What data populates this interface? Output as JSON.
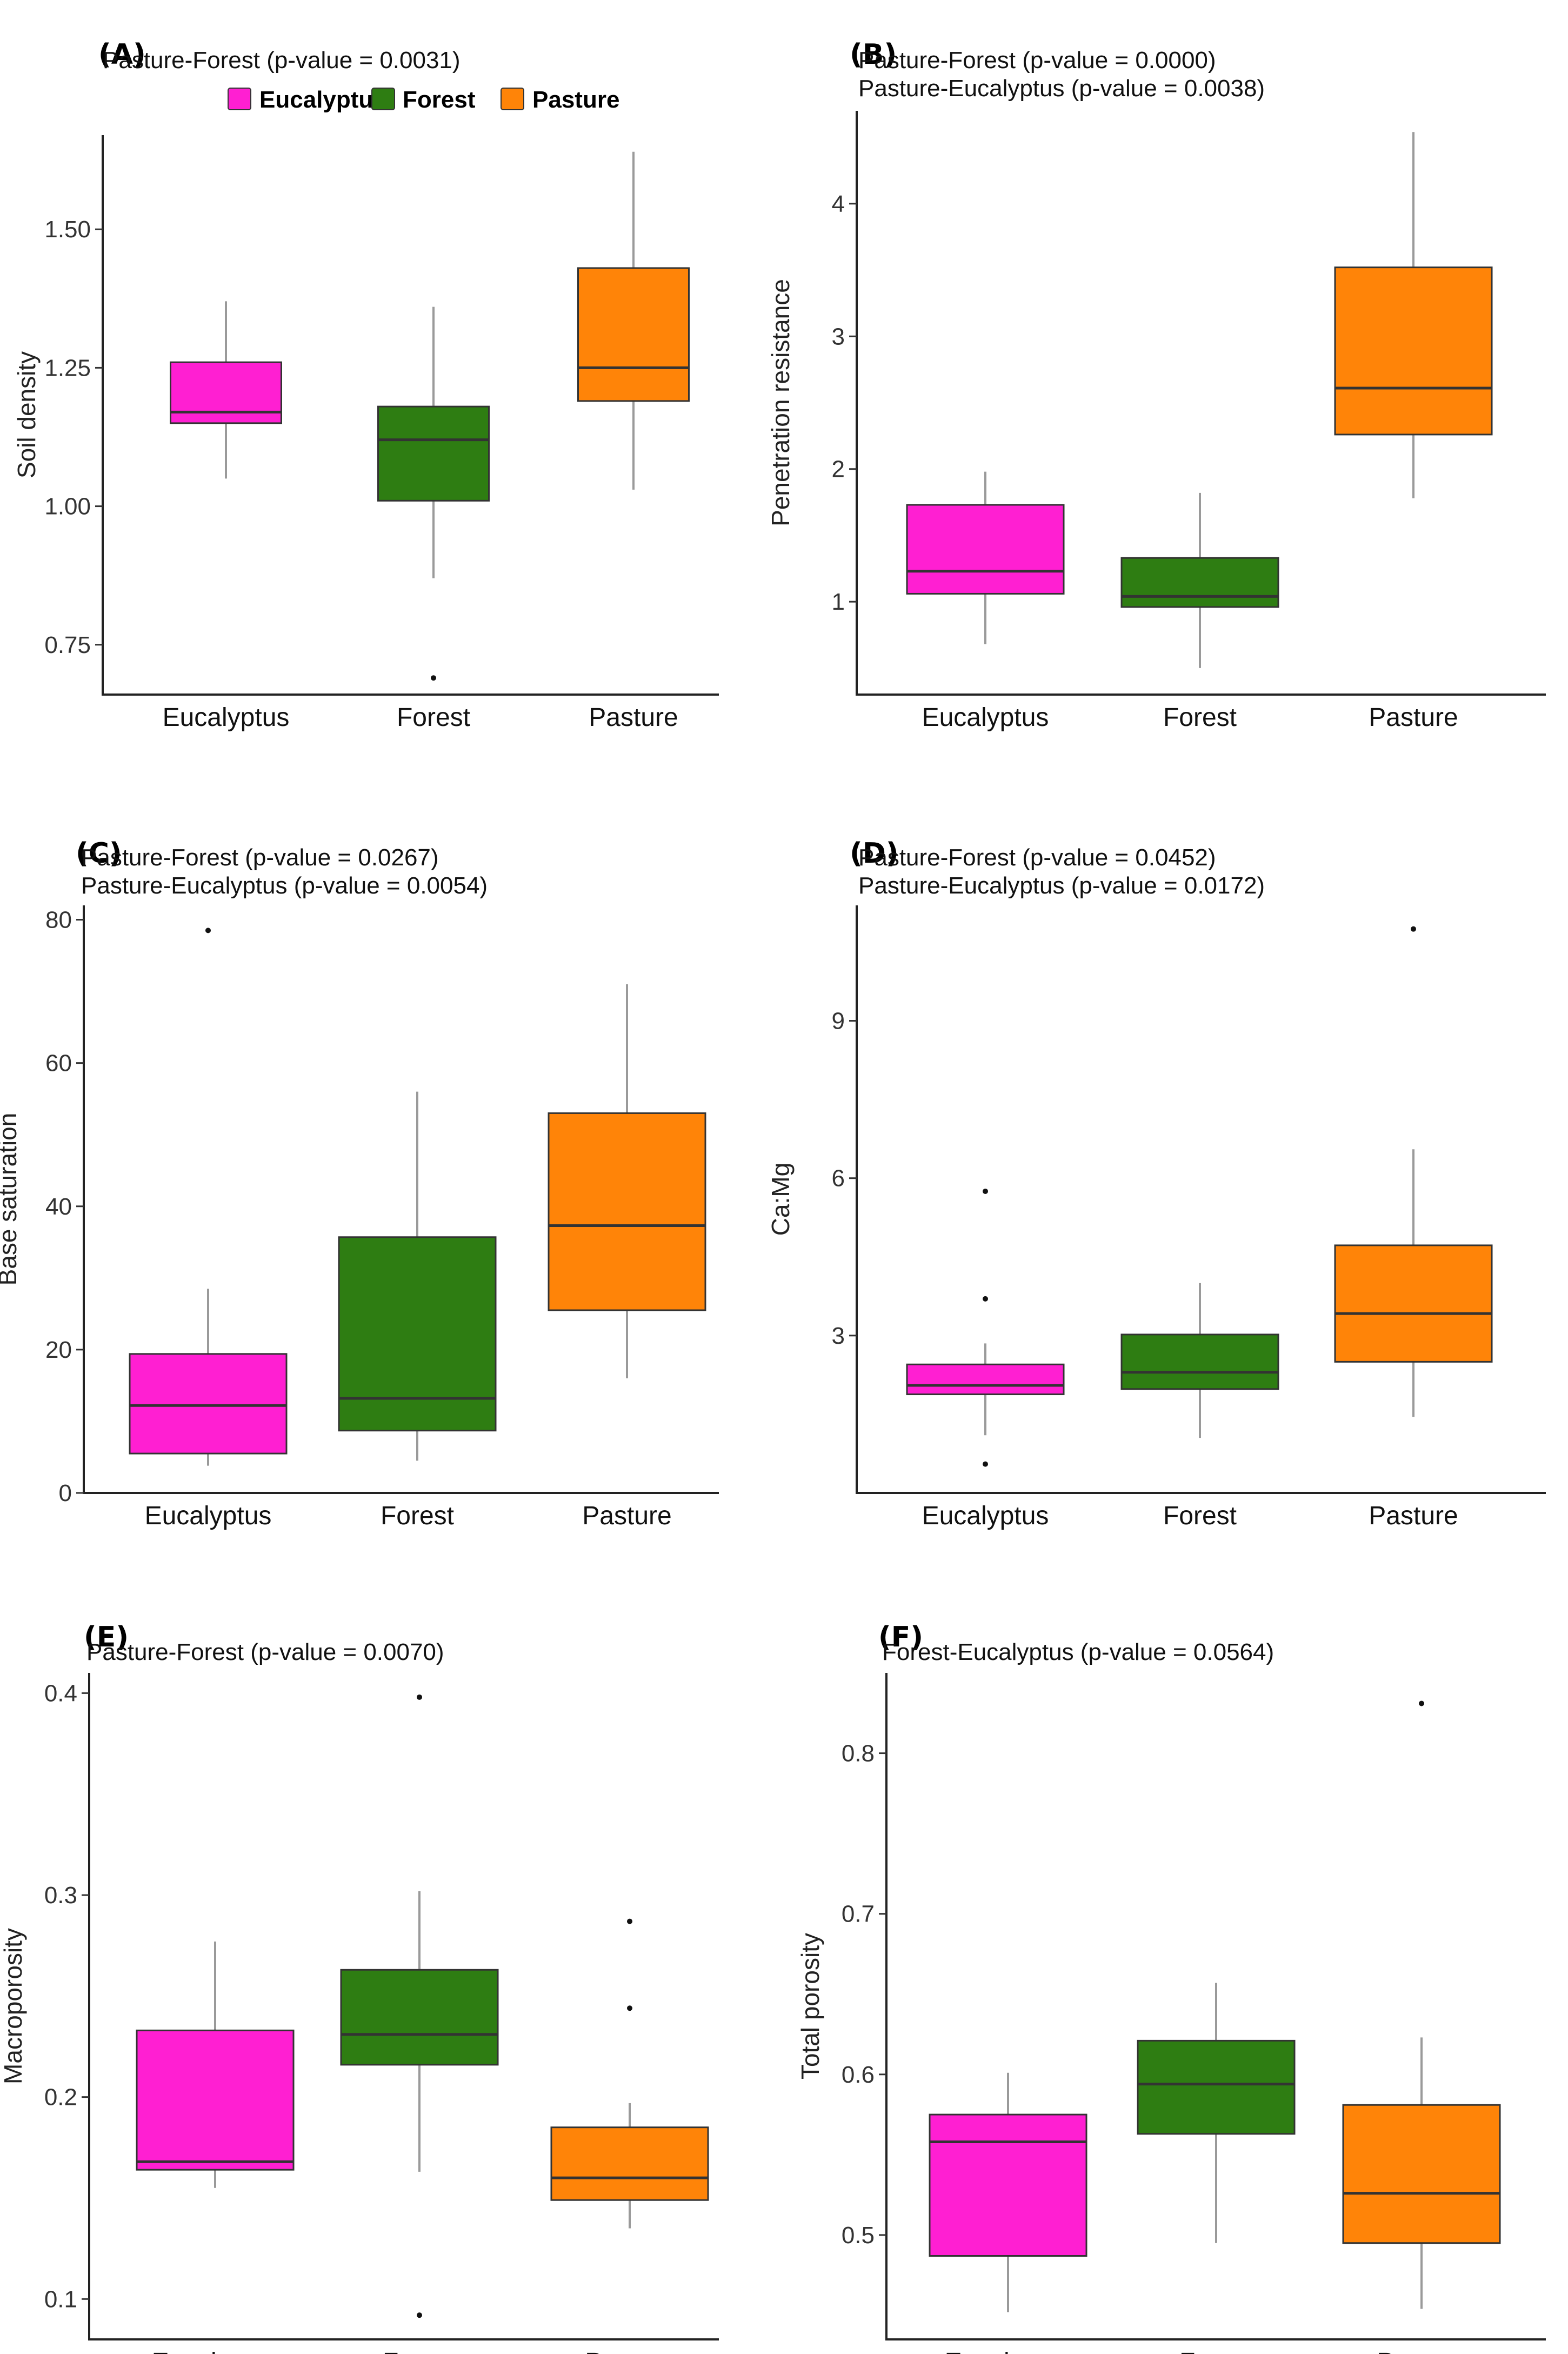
{
  "legend": {
    "items": [
      {
        "name": "Eucalyptus",
        "color": "#FF1FD2"
      },
      {
        "name": "Forest",
        "color": "#2E7D12"
      },
      {
        "name": "Pasture",
        "color": "#FF8408"
      }
    ]
  },
  "chart_data": [
    {
      "type": "boxplot",
      "panel": "(A)",
      "annotations": [
        "Pasture-Forest (p-value = 0.0031)"
      ],
      "ylabel": "Soil density",
      "ylim": [
        0.66,
        1.67
      ],
      "yticks": [
        0.75,
        1.0,
        1.25,
        1.5
      ],
      "ytick_labels": [
        "0.75",
        "1.00",
        "1.25",
        "1.50"
      ],
      "categories": [
        "Eucalyptus",
        "Forest",
        "Pasture"
      ],
      "boxes": [
        {
          "category": "Eucalyptus",
          "whisker_low": 1.05,
          "q1": 1.15,
          "median": 1.17,
          "q3": 1.26,
          "whisker_high": 1.37,
          "outliers": []
        },
        {
          "category": "Forest",
          "whisker_low": 0.87,
          "q1": 1.01,
          "median": 1.12,
          "q3": 1.18,
          "whisker_high": 1.36,
          "outliers": [
            0.69
          ]
        },
        {
          "category": "Pasture",
          "whisker_low": 1.03,
          "q1": 1.19,
          "median": 1.25,
          "q3": 1.43,
          "whisker_high": 1.64,
          "outliers": []
        }
      ]
    },
    {
      "type": "boxplot",
      "panel": "(B)",
      "annotations": [
        "Pasture-Forest (p-value = 0.0000)",
        "Pasture-Eucalyptus (p-value = 0.0038)"
      ],
      "ylabel": "Penetration resistance",
      "ylim": [
        0.3,
        4.7
      ],
      "yticks": [
        1,
        2,
        3,
        4
      ],
      "ytick_labels": [
        "1",
        "2",
        "3",
        "4"
      ],
      "categories": [
        "Eucalyptus",
        "Forest",
        "Pasture"
      ],
      "boxes": [
        {
          "category": "Eucalyptus",
          "whisker_low": 0.68,
          "q1": 1.06,
          "median": 1.23,
          "q3": 1.73,
          "whisker_high": 1.98,
          "outliers": []
        },
        {
          "category": "Forest",
          "whisker_low": 0.5,
          "q1": 0.96,
          "median": 1.04,
          "q3": 1.33,
          "whisker_high": 1.82,
          "outliers": []
        },
        {
          "category": "Pasture",
          "whisker_low": 1.78,
          "q1": 2.26,
          "median": 2.61,
          "q3": 3.52,
          "whisker_high": 4.54,
          "outliers": []
        }
      ]
    },
    {
      "type": "boxplot",
      "panel": "(C)",
      "annotations": [
        "Pasture-Forest (p-value = 0.0267)",
        "Pasture-Eucalyptus (p-value = 0.0054)"
      ],
      "ylabel": "Base saturation",
      "ylim": [
        0,
        82
      ],
      "yticks": [
        0,
        20,
        40,
        60,
        80
      ],
      "ytick_labels": [
        "0",
        "20",
        "40",
        "60",
        "80"
      ],
      "categories": [
        "Eucalyptus",
        "Forest",
        "Pasture"
      ],
      "boxes": [
        {
          "category": "Eucalyptus",
          "whisker_low": 3.8,
          "q1": 5.5,
          "median": 12.2,
          "q3": 19.4,
          "whisker_high": 28.5,
          "outliers": [
            78.5
          ]
        },
        {
          "category": "Forest",
          "whisker_low": 4.5,
          "q1": 8.7,
          "median": 13.2,
          "q3": 35.7,
          "whisker_high": 56.0,
          "outliers": []
        },
        {
          "category": "Pasture",
          "whisker_low": 16.0,
          "q1": 25.5,
          "median": 37.3,
          "q3": 53.0,
          "whisker_high": 71.0,
          "outliers": []
        }
      ]
    },
    {
      "type": "boxplot",
      "panel": "(D)",
      "annotations": [
        "Pasture-Forest (p-value = 0.0452)",
        "Pasture-Eucalyptus (p-value = 0.0172)"
      ],
      "ylabel": "Ca:Mg",
      "ylim": [
        0.0,
        11.2
      ],
      "yticks": [
        3,
        6,
        9
      ],
      "ytick_labels": [
        "3",
        "6",
        "9"
      ],
      "categories": [
        "Eucalyptus",
        "Forest",
        "Pasture"
      ],
      "boxes": [
        {
          "category": "Eucalyptus",
          "whisker_low": 1.1,
          "q1": 1.88,
          "median": 2.05,
          "q3": 2.45,
          "whisker_high": 2.85,
          "outliers": [
            5.75,
            3.7,
            0.55
          ]
        },
        {
          "category": "Forest",
          "whisker_low": 1.05,
          "q1": 1.98,
          "median": 2.3,
          "q3": 3.02,
          "whisker_high": 4.0,
          "outliers": []
        },
        {
          "category": "Pasture",
          "whisker_low": 1.45,
          "q1": 2.5,
          "median": 3.42,
          "q3": 4.72,
          "whisker_high": 6.55,
          "outliers": [
            10.75
          ]
        }
      ]
    },
    {
      "type": "boxplot",
      "panel": "(E)",
      "annotations": [
        "Pasture-Forest (p-value = 0.0070)"
      ],
      "ylabel": "Macroporosity",
      "ylim": [
        0.08,
        0.41
      ],
      "yticks": [
        0.1,
        0.2,
        0.3,
        0.4
      ],
      "ytick_labels": [
        "0.1",
        "0.2",
        "0.3",
        "0.4"
      ],
      "categories": [
        "Eucalyptus",
        "Forest",
        "Pasture"
      ],
      "boxes": [
        {
          "category": "Eucalyptus",
          "whisker_low": 0.155,
          "q1": 0.164,
          "median": 0.168,
          "q3": 0.233,
          "whisker_high": 0.277,
          "outliers": []
        },
        {
          "category": "Forest",
          "whisker_low": 0.163,
          "q1": 0.216,
          "median": 0.231,
          "q3": 0.263,
          "whisker_high": 0.302,
          "outliers": [
            0.398,
            0.092
          ]
        },
        {
          "category": "Pasture",
          "whisker_low": 0.135,
          "q1": 0.149,
          "median": 0.16,
          "q3": 0.185,
          "whisker_high": 0.197,
          "outliers": [
            0.287,
            0.244
          ]
        }
      ]
    },
    {
      "type": "boxplot",
      "panel": "(F)",
      "annotations": [
        "Forest-Eucalyptus (p-value = 0.0564)"
      ],
      "ylabel": "Total porosity",
      "ylim": [
        0.435,
        0.85
      ],
      "yticks": [
        0.5,
        0.6,
        0.7,
        0.8
      ],
      "ytick_labels": [
        "0.5",
        "0.6",
        "0.7",
        "0.8"
      ],
      "categories": [
        "Eucalyptus",
        "Forest",
        "Pasture"
      ],
      "boxes": [
        {
          "category": "Eucalyptus",
          "whisker_low": 0.452,
          "q1": 0.487,
          "median": 0.558,
          "q3": 0.575,
          "whisker_high": 0.601,
          "outliers": []
        },
        {
          "category": "Forest",
          "whisker_low": 0.495,
          "q1": 0.563,
          "median": 0.594,
          "q3": 0.621,
          "whisker_high": 0.657,
          "outliers": []
        },
        {
          "category": "Pasture",
          "whisker_low": 0.454,
          "q1": 0.495,
          "median": 0.526,
          "q3": 0.581,
          "whisker_high": 0.623,
          "outliers": [
            0.831
          ]
        }
      ]
    }
  ]
}
